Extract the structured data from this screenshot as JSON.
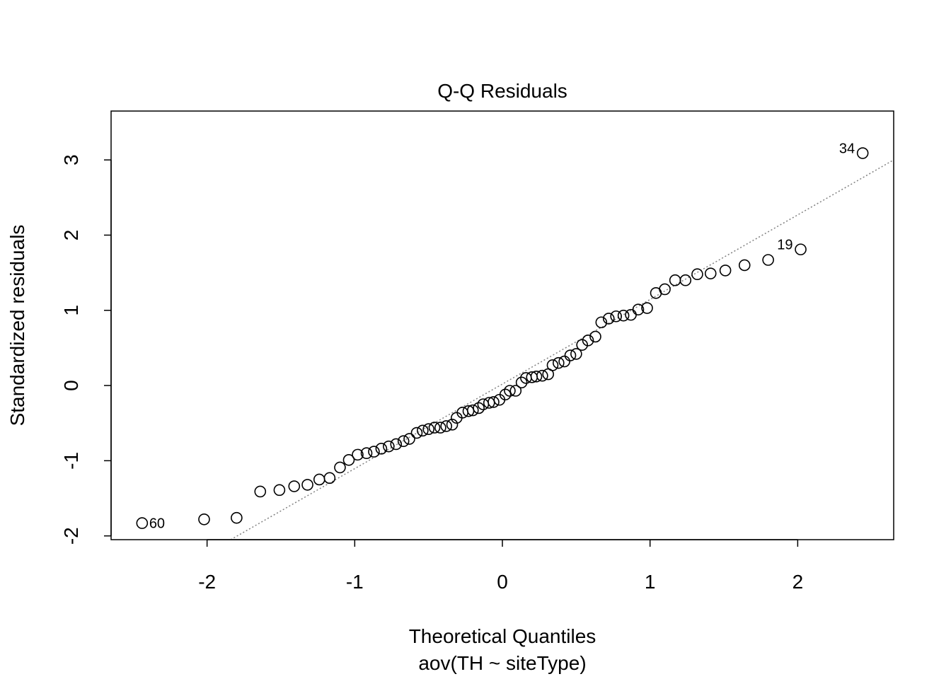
{
  "chart_data": {
    "type": "scatter",
    "title": "Q-Q Residuals",
    "xlabel": "Theoretical Quantiles",
    "subtitle": "aov(TH ~ siteType)",
    "ylabel": "Standardized residuals",
    "xlim": [
      -2.65,
      2.65
    ],
    "ylim": [
      -2.05,
      3.65
    ],
    "xticks": [
      -2,
      -1,
      0,
      1,
      2
    ],
    "xtick_labels": [
      "-2",
      "-1",
      "0",
      "1",
      "2"
    ],
    "yticks": [
      -2,
      -1,
      0,
      1,
      2,
      3
    ],
    "ytick_labels": [
      "-2",
      "-1",
      "0",
      "1",
      "2",
      "3"
    ],
    "grid": false,
    "legend": "none",
    "reference_line": {
      "style": "dotted",
      "color": "#808080",
      "points": [
        [
          -1.84,
          -2.05
        ],
        [
          2.65,
          3.0
        ]
      ]
    },
    "points": [
      {
        "x": -2.44,
        "y": -1.83,
        "label": "60"
      },
      {
        "x": -2.02,
        "y": -1.78
      },
      {
        "x": -1.8,
        "y": -1.76
      },
      {
        "x": -1.64,
        "y": -1.41
      },
      {
        "x": -1.51,
        "y": -1.39
      },
      {
        "x": -1.41,
        "y": -1.34
      },
      {
        "x": -1.32,
        "y": -1.32
      },
      {
        "x": -1.24,
        "y": -1.25
      },
      {
        "x": -1.17,
        "y": -1.23
      },
      {
        "x": -1.1,
        "y": -1.09
      },
      {
        "x": -1.04,
        "y": -0.99
      },
      {
        "x": -0.98,
        "y": -0.92
      },
      {
        "x": -0.92,
        "y": -0.9
      },
      {
        "x": -0.87,
        "y": -0.88
      },
      {
        "x": -0.82,
        "y": -0.84
      },
      {
        "x": -0.77,
        "y": -0.81
      },
      {
        "x": -0.72,
        "y": -0.78
      },
      {
        "x": -0.67,
        "y": -0.74
      },
      {
        "x": -0.63,
        "y": -0.71
      },
      {
        "x": -0.58,
        "y": -0.63
      },
      {
        "x": -0.54,
        "y": -0.6
      },
      {
        "x": -0.5,
        "y": -0.58
      },
      {
        "x": -0.46,
        "y": -0.56
      },
      {
        "x": -0.42,
        "y": -0.56
      },
      {
        "x": -0.38,
        "y": -0.54
      },
      {
        "x": -0.34,
        "y": -0.52
      },
      {
        "x": -0.31,
        "y": -0.43
      },
      {
        "x": -0.27,
        "y": -0.36
      },
      {
        "x": -0.23,
        "y": -0.34
      },
      {
        "x": -0.2,
        "y": -0.33
      },
      {
        "x": -0.16,
        "y": -0.3
      },
      {
        "x": -0.13,
        "y": -0.25
      },
      {
        "x": -0.09,
        "y": -0.23
      },
      {
        "x": -0.06,
        "y": -0.22
      },
      {
        "x": -0.02,
        "y": -0.19
      },
      {
        "x": 0.02,
        "y": -0.12
      },
      {
        "x": 0.05,
        "y": -0.07
      },
      {
        "x": 0.09,
        "y": -0.07
      },
      {
        "x": 0.13,
        "y": 0.04
      },
      {
        "x": 0.16,
        "y": 0.1
      },
      {
        "x": 0.2,
        "y": 0.11
      },
      {
        "x": 0.23,
        "y": 0.12
      },
      {
        "x": 0.27,
        "y": 0.13
      },
      {
        "x": 0.31,
        "y": 0.15
      },
      {
        "x": 0.34,
        "y": 0.27
      },
      {
        "x": 0.38,
        "y": 0.3
      },
      {
        "x": 0.42,
        "y": 0.32
      },
      {
        "x": 0.46,
        "y": 0.4
      },
      {
        "x": 0.5,
        "y": 0.42
      },
      {
        "x": 0.54,
        "y": 0.54
      },
      {
        "x": 0.58,
        "y": 0.6
      },
      {
        "x": 0.63,
        "y": 0.65
      },
      {
        "x": 0.67,
        "y": 0.84
      },
      {
        "x": 0.72,
        "y": 0.89
      },
      {
        "x": 0.77,
        "y": 0.92
      },
      {
        "x": 0.82,
        "y": 0.93
      },
      {
        "x": 0.87,
        "y": 0.94
      },
      {
        "x": 0.92,
        "y": 1.01
      },
      {
        "x": 0.98,
        "y": 1.03
      },
      {
        "x": 1.04,
        "y": 1.23
      },
      {
        "x": 1.1,
        "y": 1.28
      },
      {
        "x": 1.17,
        "y": 1.4
      },
      {
        "x": 1.24,
        "y": 1.4
      },
      {
        "x": 1.32,
        "y": 1.48
      },
      {
        "x": 1.41,
        "y": 1.49
      },
      {
        "x": 1.51,
        "y": 1.53
      },
      {
        "x": 1.64,
        "y": 1.6
      },
      {
        "x": 1.8,
        "y": 1.67
      },
      {
        "x": 2.02,
        "y": 1.81,
        "label": "19"
      },
      {
        "x": 2.44,
        "y": 3.09,
        "label": "34"
      }
    ]
  }
}
